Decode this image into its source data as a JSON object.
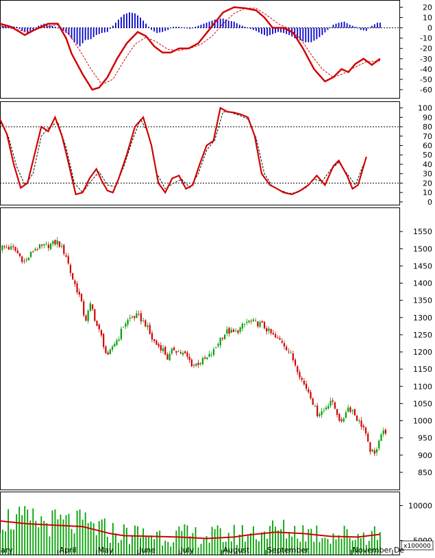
{
  "colors": {
    "up": "#00a000",
    "down": "#d00000",
    "signal": "#d00000",
    "histogram": "#0000cc",
    "volume": "#00a000"
  },
  "months": [
    {
      "label": "ary",
      "day": 0
    },
    {
      "label": "April",
      "day": 42
    },
    {
      "label": "May",
      "day": 70
    },
    {
      "label": "June",
      "day": 100
    },
    {
      "label": "July",
      "day": 130
    },
    {
      "label": "August",
      "day": 161
    },
    {
      "label": "September",
      "day": 193
    },
    {
      "label": "November",
      "day": 255
    },
    {
      "label": "De",
      "day": 285
    }
  ],
  "chart_data": [
    {
      "type": "line",
      "panel": "macd",
      "x_range": [
        0,
        290
      ],
      "ylim": [
        -68,
        27
      ],
      "yticks": [
        20,
        10,
        0,
        -10,
        -20,
        -30,
        -40,
        -50,
        -60
      ],
      "reference_lines": [
        0
      ],
      "macd": [
        [
          0,
          4
        ],
        [
          8,
          1
        ],
        [
          18,
          -7
        ],
        [
          25,
          -2
        ],
        [
          35,
          4
        ],
        [
          42,
          4
        ],
        [
          48,
          -10
        ],
        [
          52,
          -25
        ],
        [
          60,
          -45
        ],
        [
          67,
          -60
        ],
        [
          72,
          -58
        ],
        [
          78,
          -48
        ],
        [
          85,
          -30
        ],
        [
          92,
          -15
        ],
        [
          100,
          -4
        ],
        [
          106,
          -8
        ],
        [
          112,
          -18
        ],
        [
          118,
          -24
        ],
        [
          124,
          -24
        ],
        [
          130,
          -20
        ],
        [
          137,
          -20
        ],
        [
          144,
          -15
        ],
        [
          150,
          -5
        ],
        [
          156,
          5
        ],
        [
          162,
          15
        ],
        [
          170,
          20
        ],
        [
          178,
          19
        ],
        [
          186,
          17
        ],
        [
          192,
          10
        ],
        [
          198,
          0
        ],
        [
          206,
          0
        ],
        [
          213,
          -5
        ],
        [
          220,
          -20
        ],
        [
          228,
          -40
        ],
        [
          236,
          -52
        ],
        [
          242,
          -48
        ],
        [
          248,
          -40
        ],
        [
          253,
          -43
        ],
        [
          258,
          -35
        ],
        [
          264,
          -30
        ],
        [
          270,
          -36
        ],
        [
          276,
          -30
        ]
      ],
      "signal": [
        [
          0,
          2
        ],
        [
          10,
          -1
        ],
        [
          20,
          -4
        ],
        [
          30,
          0
        ],
        [
          42,
          3
        ],
        [
          50,
          -6
        ],
        [
          58,
          -22
        ],
        [
          66,
          -40
        ],
        [
          74,
          -55
        ],
        [
          82,
          -50
        ],
        [
          90,
          -32
        ],
        [
          98,
          -16
        ],
        [
          106,
          -9
        ],
        [
          114,
          -14
        ],
        [
          122,
          -21
        ],
        [
          130,
          -22
        ],
        [
          138,
          -20
        ],
        [
          146,
          -16
        ],
        [
          154,
          -8
        ],
        [
          162,
          4
        ],
        [
          170,
          14
        ],
        [
          178,
          19
        ],
        [
          186,
          19
        ],
        [
          194,
          12
        ],
        [
          202,
          4
        ],
        [
          210,
          -1
        ],
        [
          218,
          -10
        ],
        [
          226,
          -26
        ],
        [
          234,
          -40
        ],
        [
          242,
          -48
        ],
        [
          250,
          -44
        ],
        [
          258,
          -38
        ],
        [
          266,
          -33
        ],
        [
          276,
          -32
        ]
      ],
      "histogram": [
        [
          0,
          2
        ],
        [
          6,
          2
        ],
        [
          12,
          1
        ],
        [
          16,
          -3
        ],
        [
          20,
          -5
        ],
        [
          24,
          -2
        ],
        [
          28,
          2
        ],
        [
          32,
          4
        ],
        [
          38,
          2
        ],
        [
          42,
          0
        ],
        [
          46,
          -3
        ],
        [
          50,
          -7
        ],
        [
          54,
          -14
        ],
        [
          58,
          -18
        ],
        [
          62,
          -12
        ],
        [
          66,
          -11
        ],
        [
          70,
          -7
        ],
        [
          74,
          -5
        ],
        [
          78,
          -4
        ],
        [
          82,
          2
        ],
        [
          86,
          8
        ],
        [
          90,
          13
        ],
        [
          94,
          15
        ],
        [
          98,
          14
        ],
        [
          102,
          10
        ],
        [
          106,
          4
        ],
        [
          110,
          -2
        ],
        [
          114,
          -5
        ],
        [
          118,
          -4
        ],
        [
          122,
          -2
        ],
        [
          126,
          1
        ],
        [
          130,
          1
        ],
        [
          134,
          0
        ],
        [
          138,
          -1
        ],
        [
          142,
          1
        ],
        [
          146,
          3
        ],
        [
          150,
          5
        ],
        [
          154,
          7
        ],
        [
          158,
          9
        ],
        [
          162,
          9
        ],
        [
          166,
          7
        ],
        [
          170,
          6
        ],
        [
          174,
          3
        ],
        [
          178,
          1
        ],
        [
          182,
          -1
        ],
        [
          186,
          -3
        ],
        [
          190,
          -6
        ],
        [
          194,
          -8
        ],
        [
          198,
          -6
        ],
        [
          202,
          -4
        ],
        [
          206,
          -5
        ],
        [
          210,
          -7
        ],
        [
          214,
          -10
        ],
        [
          218,
          -12
        ],
        [
          222,
          -14
        ],
        [
          226,
          -14
        ],
        [
          230,
          -11
        ],
        [
          234,
          -7
        ],
        [
          238,
          -2
        ],
        [
          242,
          3
        ],
        [
          246,
          5
        ],
        [
          250,
          6
        ],
        [
          254,
          3
        ],
        [
          258,
          1
        ],
        [
          262,
          -2
        ],
        [
          266,
          -3
        ],
        [
          270,
          2
        ],
        [
          274,
          5
        ]
      ]
    },
    {
      "type": "line",
      "panel": "stochastic",
      "x_range": [
        0,
        290
      ],
      "ylim": [
        -3,
        107
      ],
      "yticks": [
        100,
        90,
        80,
        70,
        60,
        50,
        40,
        30,
        20,
        10,
        0
      ],
      "reference_lines": [
        80,
        20
      ],
      "k": [
        [
          0,
          88
        ],
        [
          5,
          72
        ],
        [
          10,
          40
        ],
        [
          15,
          15
        ],
        [
          20,
          20
        ],
        [
          25,
          50
        ],
        [
          30,
          80
        ],
        [
          35,
          75
        ],
        [
          40,
          90
        ],
        [
          45,
          70
        ],
        [
          50,
          40
        ],
        [
          55,
          8
        ],
        [
          60,
          10
        ],
        [
          65,
          25
        ],
        [
          70,
          35
        ],
        [
          74,
          22
        ],
        [
          78,
          12
        ],
        [
          82,
          10
        ],
        [
          86,
          24
        ],
        [
          92,
          50
        ],
        [
          98,
          80
        ],
        [
          104,
          90
        ],
        [
          110,
          60
        ],
        [
          115,
          20
        ],
        [
          120,
          10
        ],
        [
          125,
          25
        ],
        [
          130,
          28
        ],
        [
          135,
          14
        ],
        [
          140,
          18
        ],
        [
          145,
          40
        ],
        [
          150,
          60
        ],
        [
          155,
          65
        ],
        [
          160,
          100
        ],
        [
          165,
          96
        ],
        [
          170,
          95
        ],
        [
          175,
          93
        ],
        [
          180,
          90
        ],
        [
          185,
          70
        ],
        [
          190,
          30
        ],
        [
          196,
          18
        ],
        [
          200,
          15
        ],
        [
          206,
          10
        ],
        [
          212,
          8
        ],
        [
          218,
          12
        ],
        [
          224,
          18
        ],
        [
          230,
          28
        ],
        [
          236,
          18
        ],
        [
          242,
          38
        ],
        [
          246,
          44
        ],
        [
          252,
          28
        ],
        [
          256,
          14
        ],
        [
          260,
          18
        ],
        [
          266,
          48
        ]
      ],
      "d": [
        [
          0,
          85
        ],
        [
          6,
          70
        ],
        [
          12,
          38
        ],
        [
          18,
          18
        ],
        [
          24,
          30
        ],
        [
          30,
          70
        ],
        [
          36,
          80
        ],
        [
          42,
          85
        ],
        [
          48,
          58
        ],
        [
          54,
          20
        ],
        [
          60,
          10
        ],
        [
          66,
          22
        ],
        [
          72,
          32
        ],
        [
          78,
          18
        ],
        [
          84,
          16
        ],
        [
          90,
          38
        ],
        [
          96,
          65
        ],
        [
          102,
          88
        ],
        [
          108,
          72
        ],
        [
          114,
          30
        ],
        [
          120,
          14
        ],
        [
          126,
          20
        ],
        [
          132,
          24
        ],
        [
          138,
          15
        ],
        [
          144,
          30
        ],
        [
          150,
          55
        ],
        [
          156,
          66
        ],
        [
          162,
          96
        ],
        [
          168,
          95
        ],
        [
          174,
          92
        ],
        [
          180,
          88
        ],
        [
          186,
          68
        ],
        [
          192,
          30
        ],
        [
          198,
          16
        ],
        [
          204,
          12
        ],
        [
          210,
          9
        ],
        [
          216,
          10
        ],
        [
          222,
          15
        ],
        [
          228,
          24
        ],
        [
          234,
          22
        ],
        [
          240,
          34
        ],
        [
          246,
          42
        ],
        [
          252,
          30
        ],
        [
          258,
          18
        ],
        [
          264,
          40
        ]
      ]
    },
    {
      "type": "candlestick",
      "panel": "price",
      "x_range": [
        0,
        290
      ],
      "ylim": [
        800,
        1620
      ],
      "yticks": [
        1550,
        1500,
        1450,
        1400,
        1350,
        1300,
        1250,
        1200,
        1150,
        1100,
        1050,
        1000,
        950,
        900,
        850
      ],
      "close_path": [
        [
          0,
          1505
        ],
        [
          10,
          1500
        ],
        [
          18,
          1460
        ],
        [
          25,
          1500
        ],
        [
          35,
          1510
        ],
        [
          42,
          1520
        ],
        [
          48,
          1480
        ],
        [
          52,
          1420
        ],
        [
          58,
          1360
        ],
        [
          62,
          1290
        ],
        [
          66,
          1340
        ],
        [
          70,
          1280
        ],
        [
          74,
          1240
        ],
        [
          78,
          1180
        ],
        [
          82,
          1220
        ],
        [
          86,
          1240
        ],
        [
          90,
          1280
        ],
        [
          95,
          1300
        ],
        [
          100,
          1305
        ],
        [
          106,
          1280
        ],
        [
          110,
          1240
        ],
        [
          114,
          1220
        ],
        [
          118,
          1210
        ],
        [
          122,
          1180
        ],
        [
          126,
          1210
        ],
        [
          130,
          1200
        ],
        [
          135,
          1190
        ],
        [
          140,
          1160
        ],
        [
          145,
          1170
        ],
        [
          150,
          1180
        ],
        [
          155,
          1200
        ],
        [
          160,
          1240
        ],
        [
          165,
          1260
        ],
        [
          170,
          1255
        ],
        [
          175,
          1270
        ],
        [
          180,
          1290
        ],
        [
          185,
          1285
        ],
        [
          190,
          1280
        ],
        [
          195,
          1260
        ],
        [
          200,
          1240
        ],
        [
          205,
          1230
        ],
        [
          210,
          1200
        ],
        [
          215,
          1160
        ],
        [
          220,
          1110
        ],
        [
          225,
          1080
        ],
        [
          230,
          1020
        ],
        [
          235,
          1030
        ],
        [
          240,
          1060
        ],
        [
          244,
          1030
        ],
        [
          248,
          990
        ],
        [
          252,
          1040
        ],
        [
          256,
          1030
        ],
        [
          260,
          1000
        ],
        [
          264,
          980
        ],
        [
          268,
          920
        ],
        [
          272,
          900
        ],
        [
          276,
          960
        ],
        [
          280,
          970
        ]
      ]
    },
    {
      "type": "bar",
      "panel": "volume",
      "x_range": [
        0,
        290
      ],
      "ylim": [
        3000,
        12000
      ],
      "yticks": [
        10000,
        5000
      ],
      "multiplier_label": "x100000",
      "ma_path": [
        [
          0,
          7800
        ],
        [
          20,
          7400
        ],
        [
          40,
          7200
        ],
        [
          60,
          7000
        ],
        [
          70,
          6500
        ],
        [
          80,
          6000
        ],
        [
          90,
          5700
        ],
        [
          110,
          5600
        ],
        [
          130,
          5500
        ],
        [
          150,
          5300
        ],
        [
          170,
          5500
        ],
        [
          180,
          5800
        ],
        [
          200,
          6200
        ],
        [
          220,
          6000
        ],
        [
          240,
          5600
        ],
        [
          260,
          5500
        ],
        [
          276,
          5900
        ]
      ]
    }
  ]
}
